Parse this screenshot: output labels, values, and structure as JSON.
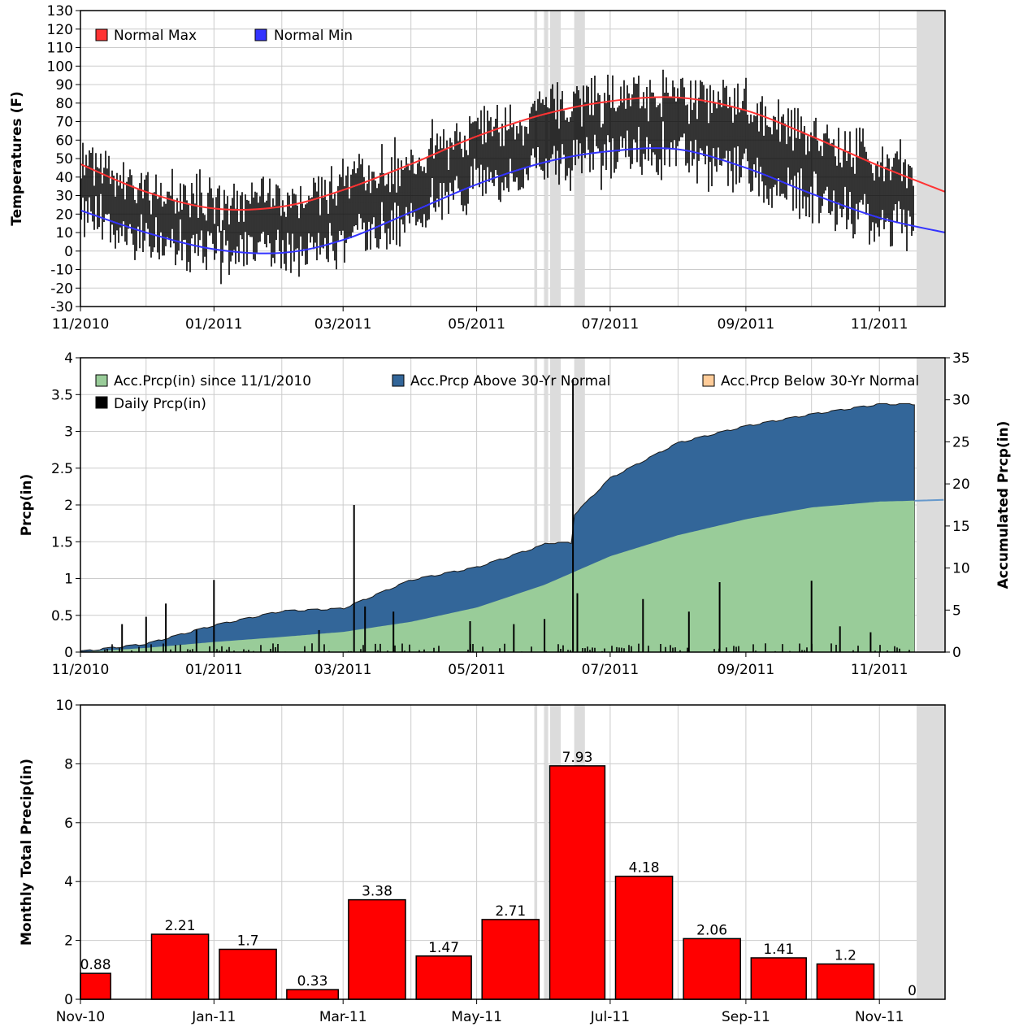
{
  "chart_data": [
    {
      "type": "line",
      "ylabel": "Temperatures (F)",
      "ylim": [
        -30,
        130
      ],
      "y_ticks": [
        -30,
        -20,
        -10,
        0,
        10,
        20,
        30,
        40,
        50,
        60,
        70,
        80,
        90,
        100,
        110,
        120,
        130
      ],
      "x_tick_labels": [
        "11/2010",
        "01/2011",
        "03/2011",
        "05/2011",
        "07/2011",
        "09/2011",
        "11/2011"
      ],
      "legend": [
        "Normal Max",
        "Normal Min"
      ],
      "legend_placement": "top-left",
      "grid": true,
      "colors": {
        "normal_max": "#ff3333",
        "normal_min": "#3333ff",
        "daily": "#000000",
        "missing": "#d9d9d9"
      },
      "series": [
        {
          "name": "Normal Max",
          "x": [
            "2010-11-01",
            "2010-12-01",
            "2011-01-01",
            "2011-02-01",
            "2011-03-01",
            "2011-04-01",
            "2011-05-01",
            "2011-06-01",
            "2011-07-01",
            "2011-08-01",
            "2011-09-01",
            "2011-10-01",
            "2011-11-01",
            "2011-12-01"
          ],
          "values": [
            47,
            32,
            23,
            24,
            33,
            47,
            62,
            74,
            81,
            83,
            76,
            62,
            46,
            32
          ]
        },
        {
          "name": "Normal Min",
          "x": [
            "2010-11-01",
            "2010-12-01",
            "2011-01-01",
            "2011-02-01",
            "2011-03-01",
            "2011-04-01",
            "2011-05-01",
            "2011-06-01",
            "2011-07-01",
            "2011-08-01",
            "2011-09-01",
            "2011-10-01",
            "2011-11-01",
            "2011-12-01"
          ],
          "values": [
            22,
            10,
            1,
            -1,
            6,
            21,
            36,
            48,
            54,
            55,
            45,
            31,
            18,
            10
          ]
        }
      ]
    },
    {
      "type": "area",
      "ylabel": "Prcp(in)",
      "y2label": "Accumulated Prcp(in)",
      "ylim": [
        0,
        4
      ],
      "y2lim": [
        0,
        35
      ],
      "y_ticks": [
        "0",
        "0.5",
        "1",
        "1.5",
        "2",
        "2.5",
        "3",
        "3.5",
        "4"
      ],
      "y2_ticks": [
        "0",
        "5",
        "10",
        "15",
        "20",
        "25",
        "30",
        "35"
      ],
      "x_tick_labels": [
        "11/2010",
        "01/2011",
        "03/2011",
        "05/2011",
        "07/2011",
        "09/2011",
        "11/2011"
      ],
      "legend": [
        "Acc.Prcp(in) since 11/1/2010",
        "Acc.Prcp Above 30-Yr Normal",
        "Acc.Prcp Below 30-Yr Normal",
        "Daily Prcp(in)"
      ],
      "legend_placement": "top",
      "grid": true,
      "colors": {
        "normal_acc": "#99cc99",
        "above": "#336699",
        "below": "#ffcc99",
        "daily": "#000000",
        "missing": "#d9d9d9"
      },
      "accumulated_observed": {
        "x": [
          "2010-11-01",
          "2010-12-01",
          "2011-01-01",
          "2011-02-01",
          "2011-03-01",
          "2011-04-01",
          "2011-05-01",
          "2011-06-01",
          "2011-07-01",
          "2011-08-01",
          "2011-09-01",
          "2011-10-01",
          "2011-11-01",
          "2011-11-17"
        ],
        "values": [
          0,
          0.9,
          3.1,
          4.8,
          5.1,
          8.5,
          10.0,
          12.7,
          20.6,
          24.8,
          26.8,
          28.2,
          29.4,
          29.4
        ]
      },
      "accumulated_normal": {
        "x": [
          "2010-11-01",
          "2010-12-01",
          "2011-01-01",
          "2011-02-01",
          "2011-03-01",
          "2011-04-01",
          "2011-05-01",
          "2011-06-01",
          "2011-07-01",
          "2011-08-01",
          "2011-09-01",
          "2011-10-01",
          "2011-11-01",
          "2011-12-01"
        ],
        "values": [
          0,
          0.5,
          1.2,
          1.8,
          2.4,
          3.6,
          5.3,
          8.0,
          11.4,
          13.9,
          15.8,
          17.2,
          17.9,
          18.1
        ]
      },
      "daily_peaks": [
        {
          "date": "2010-11-20",
          "value": 0.38
        },
        {
          "date": "2010-12-01",
          "value": 0.48
        },
        {
          "date": "2010-12-10",
          "value": 0.66
        },
        {
          "date": "2010-12-24",
          "value": 0.31
        },
        {
          "date": "2011-01-01",
          "value": 0.98
        },
        {
          "date": "2011-02-18",
          "value": 0.3
        },
        {
          "date": "2011-03-06",
          "value": 2.0
        },
        {
          "date": "2011-03-11",
          "value": 0.62
        },
        {
          "date": "2011-03-24",
          "value": 0.55
        },
        {
          "date": "2011-04-28",
          "value": 0.42
        },
        {
          "date": "2011-05-18",
          "value": 0.38
        },
        {
          "date": "2011-06-01",
          "value": 0.45
        },
        {
          "date": "2011-06-14",
          "value": 3.7
        },
        {
          "date": "2011-06-16",
          "value": 0.8
        },
        {
          "date": "2011-07-16",
          "value": 0.72
        },
        {
          "date": "2011-08-06",
          "value": 0.55
        },
        {
          "date": "2011-08-20",
          "value": 0.95
        },
        {
          "date": "2011-10-01",
          "value": 0.97
        },
        {
          "date": "2011-10-14",
          "value": 0.35
        },
        {
          "date": "2011-10-28",
          "value": 0.27
        }
      ]
    },
    {
      "type": "bar",
      "ylabel": "Monthly Total Precip(in)",
      "ylim": [
        0,
        10
      ],
      "y_ticks": [
        "0",
        "2",
        "4",
        "6",
        "8",
        "10"
      ],
      "x_tick_labels": [
        "Nov-10",
        "Jan-11",
        "Mar-11",
        "May-11",
        "Jul-11",
        "Sep-11",
        "Nov-11"
      ],
      "grid": true,
      "colors": {
        "bar": "#ff0000",
        "missing": "#d9d9d9"
      },
      "categories": [
        "Nov-10",
        "Dec-10",
        "Jan-11",
        "Feb-11",
        "Mar-11",
        "Apr-11",
        "May-11",
        "Jun-11",
        "Jul-11",
        "Aug-11",
        "Sep-11",
        "Oct-11",
        "Nov-11"
      ],
      "values": [
        0.88,
        2.21,
        1.7,
        0.33,
        3.38,
        1.47,
        2.71,
        7.93,
        4.18,
        2.06,
        1.41,
        1.2,
        0
      ],
      "data_labels": [
        "0.88",
        "2.21",
        "1.7",
        "0.33",
        "3.38",
        "1.47",
        "2.71",
        "7.93",
        "4.18",
        "2.06",
        "1.41",
        "1.2",
        "0"
      ]
    }
  ]
}
